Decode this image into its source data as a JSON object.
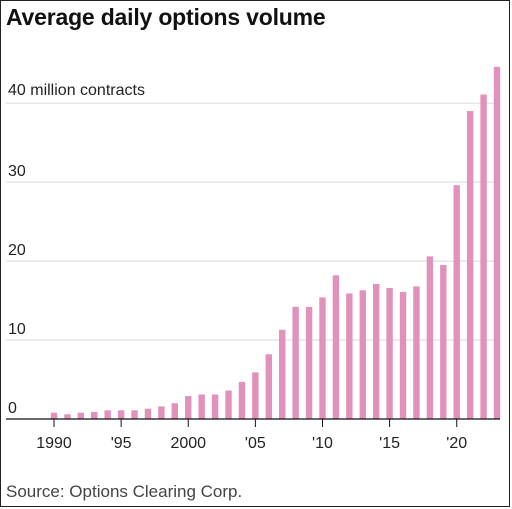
{
  "chart_data": {
    "type": "bar",
    "title": "Average daily options volume",
    "source": "Source: Options Clearing Corp.",
    "ylabel_inline": "40 million contracts",
    "x": [
      1990,
      1991,
      1992,
      1993,
      1994,
      1995,
      1996,
      1997,
      1998,
      1999,
      2000,
      2001,
      2002,
      2003,
      2004,
      2005,
      2006,
      2007,
      2008,
      2009,
      2010,
      2011,
      2012,
      2013,
      2014,
      2015,
      2016,
      2017,
      2018,
      2019,
      2020,
      2021,
      2022,
      2023
    ],
    "values": [
      0.8,
      0.6,
      0.8,
      0.9,
      1.1,
      1.1,
      1.1,
      1.3,
      1.6,
      2.0,
      2.9,
      3.1,
      3.1,
      3.6,
      4.7,
      5.9,
      8.2,
      11.3,
      14.2,
      14.2,
      15.4,
      18.2,
      15.9,
      16.3,
      17.1,
      16.6,
      16.1,
      16.8,
      20.6,
      19.5,
      29.6,
      39.0,
      41.1,
      44.6
    ],
    "xtick_values": [
      1990,
      1995,
      2000,
      2005,
      2010,
      2015,
      2020
    ],
    "xtick_labels": [
      "1990",
      "'95",
      "2000",
      "'05",
      "'10",
      "'15",
      "'20"
    ],
    "ytick_values": [
      0,
      10,
      20,
      30,
      40
    ],
    "ytick_labels": [
      "0",
      "10",
      "20",
      "30",
      ""
    ],
    "ylim": [
      0,
      48
    ],
    "grid": true,
    "colors": {
      "bar": "#e191ba",
      "grid": "#d9d9d9",
      "axis": "#111111"
    }
  }
}
